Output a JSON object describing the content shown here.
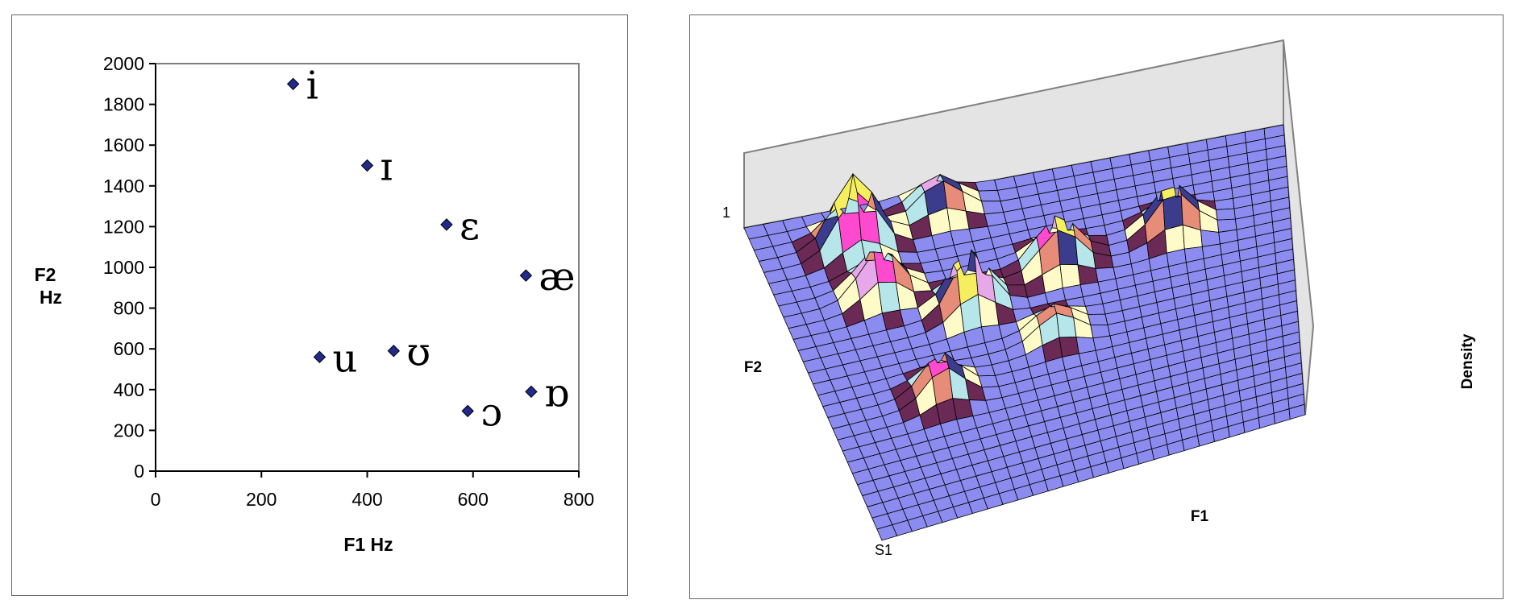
{
  "colors": {
    "marker": "#1f2a8c",
    "surface": "#8c8cf0",
    "wall": "#e4e4e4",
    "contour_colors": [
      "#6b2a55",
      "#fffbc8",
      "#b6e6ea",
      "#e88c7a",
      "#3c3c8c",
      "#e6a8e8",
      "#ff4ad0",
      "#f5ef60"
    ]
  },
  "chart_data": [
    {
      "type": "scatter",
      "xlabel": "F1 Hz",
      "ylabel": [
        "F2",
        "Hz"
      ],
      "xlim": [
        0,
        800
      ],
      "ylim": [
        0,
        2000
      ],
      "xticks": [
        "0",
        "200",
        "400",
        "600",
        "800"
      ],
      "yticks": [
        "0",
        "200",
        "400",
        "600",
        "800",
        "1000",
        "1200",
        "1400",
        "1600",
        "1800",
        "2000"
      ],
      "grid": false,
      "legend": "none",
      "points": [
        {
          "label": "i",
          "x": 260,
          "y": 1900
        },
        {
          "label": "ɪ",
          "x": 400,
          "y": 1500
        },
        {
          "label": "ɛ",
          "x": 550,
          "y": 1210
        },
        {
          "label": "æ",
          "x": 700,
          "y": 960
        },
        {
          "label": "u",
          "x": 310,
          "y": 560
        },
        {
          "label": "ʊ",
          "x": 450,
          "y": 590
        },
        {
          "label": "ɒ",
          "x": 710,
          "y": 390
        },
        {
          "label": "ɔ",
          "x": 590,
          "y": 295
        }
      ]
    },
    {
      "type": "surface",
      "xlabel": "F1",
      "ylabel": "F2",
      "zlabel": "Density",
      "corner_labels": [
        "1",
        "S1"
      ],
      "grid": true,
      "peaks": [
        {
          "f1": 0.19,
          "f2": 0.72,
          "height": 0.4
        },
        {
          "f1": 0.35,
          "f2": 0.62,
          "height": 0.5
        },
        {
          "f1": 0.54,
          "f2": 0.7,
          "height": 0.38
        },
        {
          "f1": 0.77,
          "f2": 0.73,
          "height": 0.36
        },
        {
          "f1": 0.18,
          "f2": 0.88,
          "height": 0.6
        },
        {
          "f1": 0.35,
          "f2": 0.94,
          "height": 0.28
        },
        {
          "f1": 0.24,
          "f2": 0.38,
          "height": 0.32
        },
        {
          "f1": 0.5,
          "f2": 0.48,
          "height": 0.22
        }
      ]
    }
  ]
}
